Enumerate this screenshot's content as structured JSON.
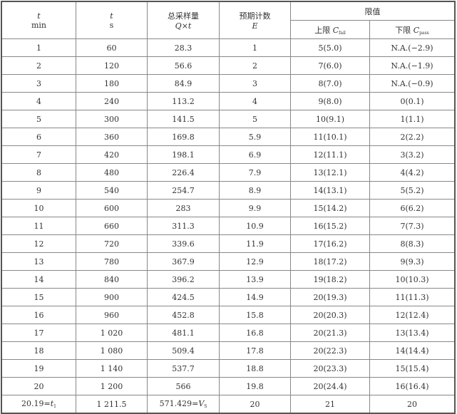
{
  "header": {
    "col1": {
      "var": "t",
      "unit": "min"
    },
    "col2": {
      "var": "t",
      "unit": "s"
    },
    "col3": {
      "title": "总采样量",
      "formula": "Q×t"
    },
    "col4": {
      "title": "预期计数",
      "var": "E"
    },
    "limits": {
      "title": "限值",
      "upper_label": "上限",
      "upper_var": "C",
      "upper_sub": "fail",
      "lower_label": "下限",
      "lower_var": "C",
      "lower_sub": "pass"
    }
  },
  "rows": [
    [
      "1",
      "60",
      "28.3",
      "1",
      "5(5.0)",
      "N.A.(−2.9)"
    ],
    [
      "2",
      "120",
      "56.6",
      "2",
      "7(6.0)",
      "N.A.(−1.9)"
    ],
    [
      "3",
      "180",
      "84.9",
      "3",
      "8(7.0)",
      "N.A.(−0.9)"
    ],
    [
      "4",
      "240",
      "113.2",
      "4",
      "9(8.0)",
      "0(0.1)"
    ],
    [
      "5",
      "300",
      "141.5",
      "5",
      "10(9.1)",
      "1(1.1)"
    ],
    [
      "6",
      "360",
      "169.8",
      "5.9",
      "11(10.1)",
      "2(2.2)"
    ],
    [
      "7",
      "420",
      "198.1",
      "6.9",
      "12(11.1)",
      "3(3.2)"
    ],
    [
      "8",
      "480",
      "226.4",
      "7.9",
      "13(12.1)",
      "4(4.2)"
    ],
    [
      "9",
      "540",
      "254.7",
      "8.9",
      "14(13.1)",
      "5(5.2)"
    ],
    [
      "10",
      "600",
      "283",
      "9.9",
      "15(14.2)",
      "6(6.2)"
    ],
    [
      "11",
      "660",
      "311.3",
      "10.9",
      "16(15.2)",
      "7(7.3)"
    ],
    [
      "12",
      "720",
      "339.6",
      "11.9",
      "17(16.2)",
      "8(8.3)"
    ],
    [
      "13",
      "780",
      "367.9",
      "12.9",
      "18(17.2)",
      "9(9.3)"
    ],
    [
      "14",
      "840",
      "396.2",
      "13.9",
      "19(18.2)",
      "10(10.3)"
    ],
    [
      "15",
      "900",
      "424.5",
      "14.9",
      "20(19.3)",
      "11(11.3)"
    ],
    [
      "16",
      "960",
      "452.8",
      "15.8",
      "20(20.3)",
      "12(12.4)"
    ],
    [
      "17",
      "1 020",
      "481.1",
      "16.8",
      "20(21.3)",
      "13(13.4)"
    ],
    [
      "18",
      "1 080",
      "509.4",
      "17.8",
      "20(22.3)",
      "14(14.4)"
    ],
    [
      "19",
      "1 140",
      "537.7",
      "18.8",
      "20(23.3)",
      "15(15.4)"
    ],
    [
      "20",
      "1 200",
      "566",
      "19.8",
      "20(24.4)",
      "16(16.4)"
    ]
  ],
  "final_row": {
    "t_min": "20.19=",
    "t_min_var": "t",
    "t_min_sub": "1",
    "t_s": "1 211.5",
    "volume": "571.429=",
    "volume_var": "V",
    "volume_sub": "S",
    "expected": "20",
    "upper": "21",
    "lower": "20"
  }
}
